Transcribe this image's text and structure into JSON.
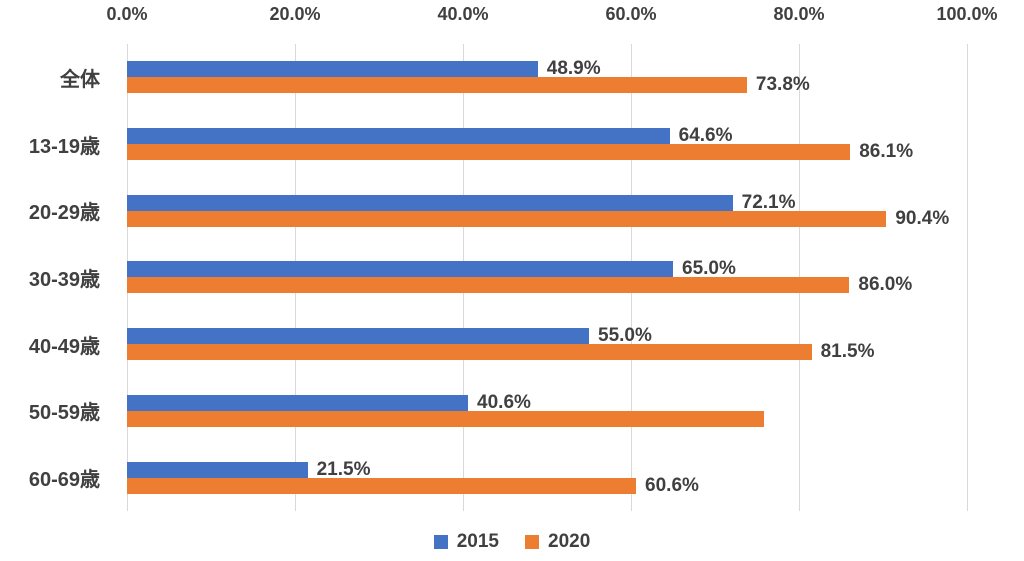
{
  "chart_data": {
    "type": "bar",
    "orientation": "horizontal",
    "title": "",
    "categories": [
      "全体",
      "13-19歳",
      "20-29歳",
      "30-39歳",
      "40-49歳",
      "50-59歳",
      "60-69歳"
    ],
    "series": [
      {
        "name": "2015",
        "color": "#4472C4",
        "values": [
          48.9,
          64.6,
          72.1,
          65.0,
          55.0,
          40.6,
          21.5
        ],
        "labels": [
          "48.9%",
          "64.6%",
          "72.1%",
          "65.0%",
          "55.0%",
          "40.6%",
          "21.5%"
        ]
      },
      {
        "name": "2020",
        "color": "#ED7D31",
        "values": [
          73.8,
          86.1,
          90.4,
          86.0,
          81.5,
          75.8,
          60.6
        ],
        "labels": [
          "73.8%",
          "86.1%",
          "90.4%",
          "86.0%",
          "81.5%",
          "",
          "60.6%"
        ]
      }
    ],
    "x_axis": {
      "min": 0,
      "max": 100,
      "tick_labels": [
        "0.0%",
        "20.0%",
        "40.0%",
        "60.0%",
        "80.0%",
        "100.0%"
      ]
    },
    "grid": true,
    "legend": {
      "position": "bottom",
      "entries": [
        "2015",
        "2020"
      ]
    }
  },
  "colors": {
    "series_2015": "#4472C4",
    "series_2020": "#ED7D31",
    "gridline": "#d9d9d9",
    "text": "#404040",
    "background": "#ffffff"
  }
}
